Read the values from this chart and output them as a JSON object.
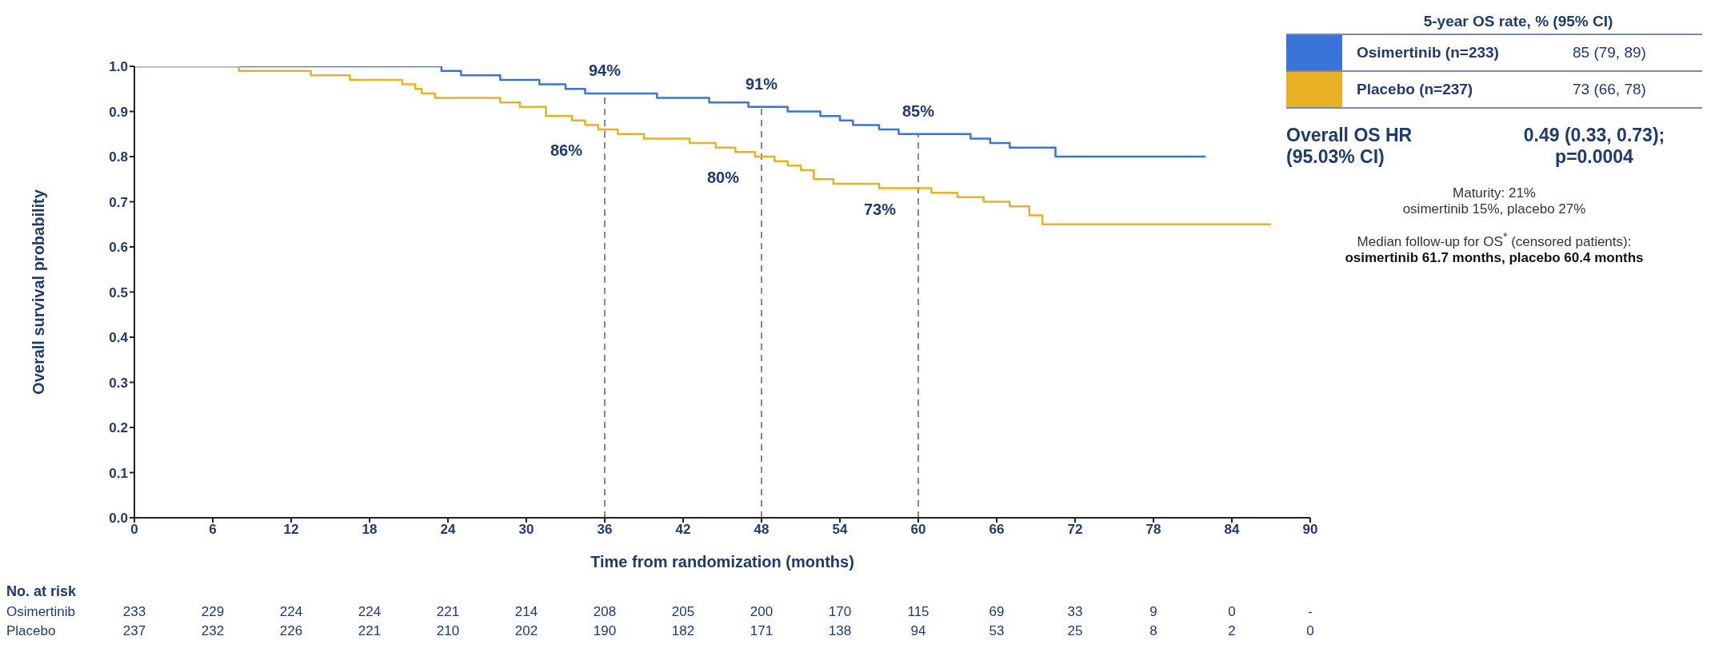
{
  "chart_data": {
    "type": "step",
    "xlabel": "Time from randomization (months)",
    "ylabel": "Overall survival probability",
    "xlim": [
      0,
      90
    ],
    "xticks": [
      0,
      6,
      12,
      18,
      24,
      30,
      36,
      42,
      48,
      54,
      60,
      66,
      72,
      78,
      84,
      90
    ],
    "ylim": [
      0,
      1
    ],
    "yticks": [
      {
        "value": 0,
        "label": "0.0"
      },
      0.1,
      0.2,
      0.3,
      0.4,
      0.5,
      0.6,
      0.7,
      0.8,
      0.9,
      {
        "value": 1,
        "label": "1.0"
      }
    ],
    "grid": false,
    "legend": "right",
    "line_style": "solid",
    "series": [
      {
        "name": "Osimertinib (n=233)",
        "color": "#3b74d8",
        "x": [
          0,
          23.5,
          25,
          28,
          31,
          33,
          34.5,
          40,
          44,
          47,
          50,
          52.5,
          54,
          55,
          57,
          58.5,
          64,
          65.5,
          67,
          70.5,
          82
        ],
        "values": [
          1,
          0.99,
          0.98,
          0.97,
          0.96,
          0.95,
          0.94,
          0.93,
          0.92,
          0.91,
          0.9,
          0.89,
          0.88,
          0.87,
          0.86,
          0.85,
          0.84,
          0.83,
          0.82,
          0.8,
          0.8
        ]
      },
      {
        "name": "Placebo (n=237)",
        "color": "#e8b025",
        "x": [
          0,
          8,
          13.5,
          16.5,
          20.5,
          21.5,
          22,
          23,
          28,
          29.5,
          31.5,
          33.5,
          34.5,
          35.5,
          37,
          39,
          42.5,
          44.5,
          46,
          47.5,
          49,
          50,
          51,
          52,
          53.5,
          57,
          61,
          63,
          65,
          67,
          68.5,
          69.5,
          87
        ],
        "values": [
          1,
          0.99,
          0.98,
          0.97,
          0.96,
          0.95,
          0.94,
          0.93,
          0.92,
          0.91,
          0.89,
          0.88,
          0.87,
          0.86,
          0.85,
          0.84,
          0.83,
          0.82,
          0.81,
          0.8,
          0.79,
          0.78,
          0.77,
          0.75,
          0.74,
          0.73,
          0.72,
          0.71,
          0.7,
          0.69,
          0.67,
          0.65,
          0.65
        ]
      }
    ],
    "ref_lines": [
      {
        "axis": "x",
        "value": 36,
        "color": "#888888",
        "line_style": "dashed"
      },
      {
        "axis": "x",
        "value": 48,
        "color": "#888888",
        "line_style": "dashed"
      },
      {
        "axis": "x",
        "value": 60,
        "color": "#888888",
        "line_style": "dashed"
      }
    ],
    "annotations": [
      {
        "text": "94%",
        "x": 36,
        "y": 0.94
      },
      {
        "text": "86%",
        "x": 36,
        "y": 0.86
      },
      {
        "text": "91%",
        "x": 48,
        "y": 0.91
      },
      {
        "text": "80%",
        "x": 48,
        "y": 0.8
      },
      {
        "text": "85%",
        "x": 60,
        "y": 0.85
      },
      {
        "text": "73%",
        "x": 60,
        "y": 0.73
      },
      "5-year OS rate, % (95% CI)",
      "85 (79, 89)",
      "73 (66, 78)",
      "Overall OS HR",
      "(95.03% CI)",
      "0.49 (0.33, 0.73);",
      "p=0.0004",
      "Maturity: 21%",
      "osimertinib 15%, placebo 27%",
      "Median follow-up for OS$^{*}$ (censored patients):",
      "osimertinib 61.7 months, placebo 60.4 months",
      "No. at risk",
      "Osimertinib 233 229 224 224 221 214 208 205 200 170 115 69 33 9 0 -",
      "Placebo 237 232 226 221 210 202 190 182 171 138 94 53 25 8 2 0"
    ]
  }
}
